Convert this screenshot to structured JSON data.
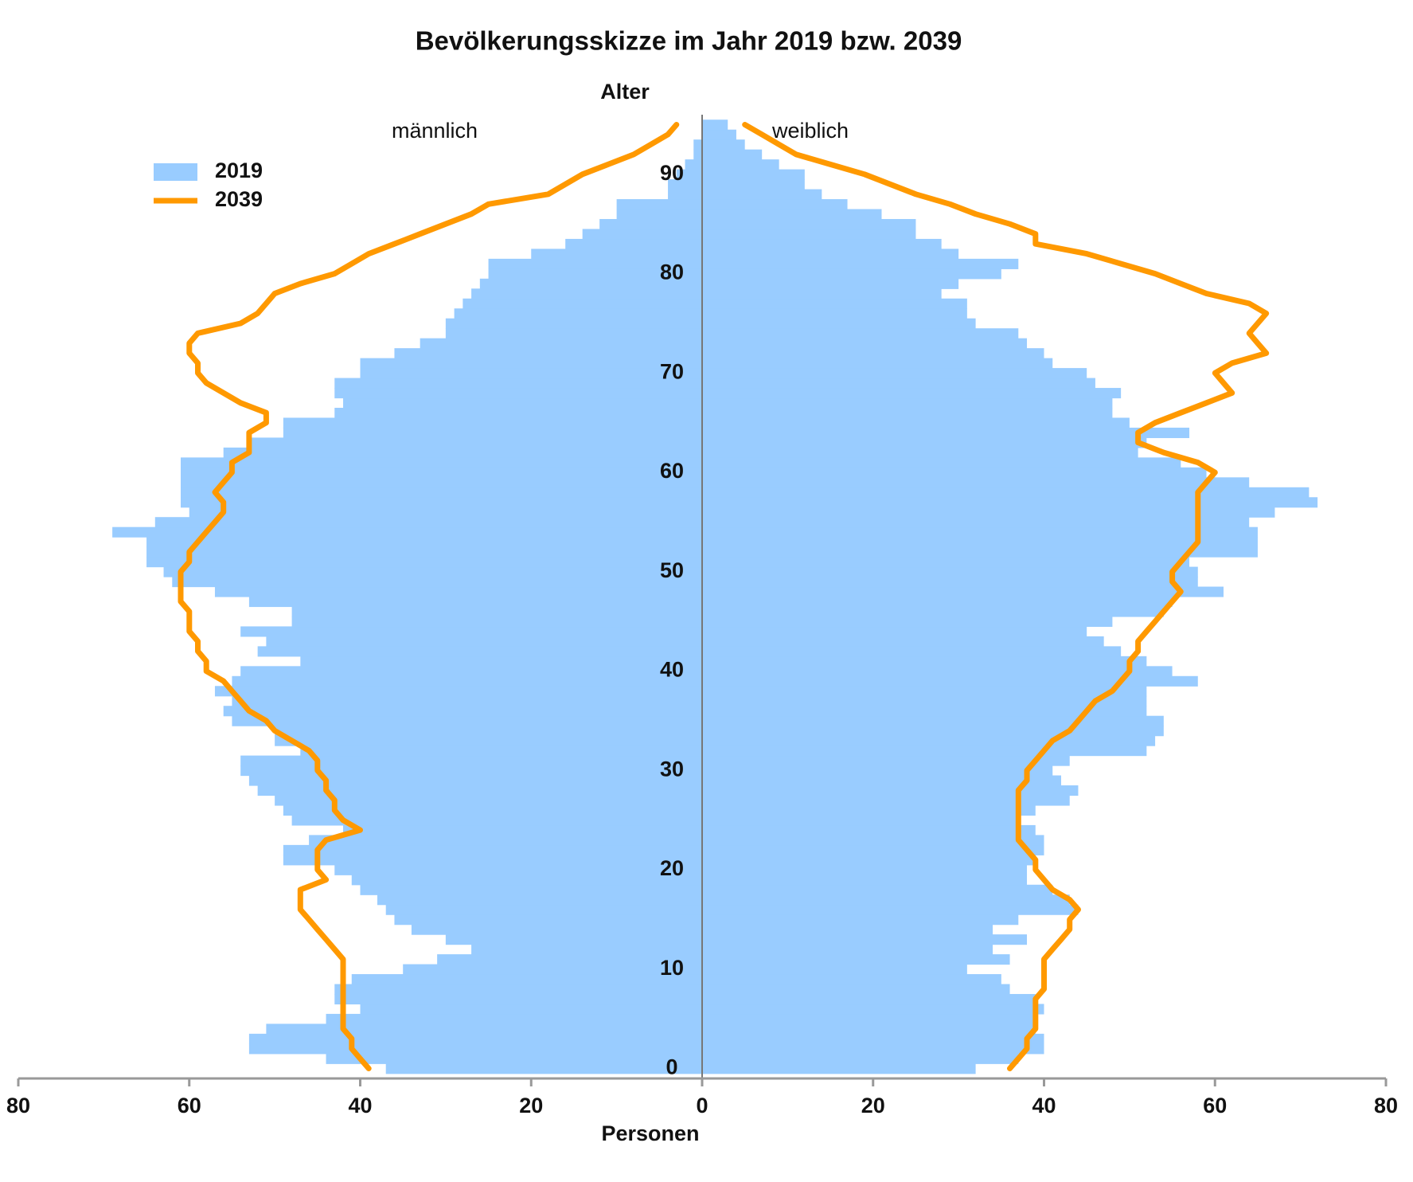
{
  "chart_data": {
    "type": "pyramid",
    "title": "Bevölkerungsskizze im Jahr 2019 bzw. 2039",
    "ylabel": "Alter",
    "xlabel": "Personen",
    "left_label": "männlich",
    "right_label": "weiblich",
    "ages": [
      0,
      1,
      2,
      3,
      4,
      5,
      6,
      7,
      8,
      9,
      10,
      11,
      12,
      13,
      14,
      15,
      16,
      17,
      18,
      19,
      20,
      21,
      22,
      23,
      24,
      25,
      26,
      27,
      28,
      29,
      30,
      31,
      32,
      33,
      34,
      35,
      36,
      37,
      38,
      39,
      40,
      41,
      42,
      43,
      44,
      45,
      46,
      47,
      48,
      49,
      50,
      51,
      52,
      53,
      54,
      55,
      56,
      57,
      58,
      59,
      60,
      61,
      62,
      63,
      64,
      65,
      66,
      67,
      68,
      69,
      70,
      71,
      72,
      73,
      74,
      75,
      76,
      77,
      78,
      79,
      80,
      81,
      82,
      83,
      84,
      85,
      86,
      87,
      88,
      89,
      90,
      91,
      92,
      93,
      94,
      95
    ],
    "series": [
      {
        "name": "2019",
        "color": "#99ccff",
        "type": "bar",
        "male": [
          37,
          44,
          53,
          53,
          51,
          44,
          40,
          43,
          43,
          41,
          35,
          31,
          27,
          30,
          34,
          36,
          37,
          38,
          40,
          41,
          43,
          49,
          49,
          46,
          42,
          48,
          49,
          50,
          52,
          53,
          54,
          54,
          47,
          50,
          50,
          55,
          56,
          55,
          57,
          55,
          54,
          47,
          52,
          51,
          54,
          48,
          48,
          53,
          57,
          62,
          63,
          65,
          65,
          65,
          69,
          64,
          60,
          61,
          61,
          61,
          61,
          61,
          56,
          53,
          49,
          49,
          43,
          42,
          43,
          43,
          40,
          40,
          36,
          33,
          30,
          30,
          29,
          28,
          27,
          26,
          25,
          25,
          20,
          16,
          14,
          12,
          10,
          10,
          4,
          4,
          3,
          2,
          1,
          1,
          0,
          0
        ],
        "female": [
          32,
          37,
          40,
          40,
          39,
          39,
          40,
          39,
          36,
          35,
          31,
          36,
          34,
          38,
          34,
          37,
          44,
          43,
          41,
          38,
          38,
          39,
          40,
          40,
          39,
          37,
          39,
          43,
          44,
          42,
          41,
          43,
          52,
          53,
          54,
          54,
          52,
          52,
          52,
          58,
          55,
          52,
          49,
          47,
          45,
          48,
          54,
          55,
          61,
          58,
          58,
          57,
          65,
          65,
          65,
          64,
          67,
          72,
          71,
          64,
          59,
          56,
          51,
          52,
          57,
          50,
          48,
          48,
          49,
          46,
          45,
          41,
          40,
          38,
          37,
          32,
          31,
          31,
          28,
          30,
          35,
          37,
          30,
          28,
          25,
          25,
          21,
          17,
          14,
          12,
          12,
          9,
          7,
          5,
          4,
          3
        ]
      },
      {
        "name": "2039",
        "color": "#ff9900",
        "type": "line",
        "male": [
          39,
          40,
          41,
          41,
          42,
          42,
          42,
          42,
          42,
          42,
          42,
          42,
          43,
          44,
          45,
          46,
          47,
          47,
          47,
          44,
          45,
          45,
          45,
          44,
          40,
          42,
          43,
          43,
          44,
          44,
          45,
          45,
          46,
          48,
          50,
          51,
          53,
          54,
          55,
          56,
          58,
          58,
          59,
          59,
          60,
          60,
          60,
          61,
          61,
          61,
          61,
          60,
          60,
          59,
          58,
          57,
          56,
          56,
          57,
          56,
          55,
          55,
          53,
          53,
          53,
          51,
          51,
          54,
          56,
          58,
          59,
          59,
          60,
          60,
          59,
          54,
          52,
          51,
          50,
          47,
          43,
          41,
          39,
          36,
          33,
          30,
          27,
          25,
          18,
          16,
          14,
          11,
          8,
          6,
          4,
          3
        ],
        "female": [
          36,
          37,
          38,
          38,
          39,
          39,
          39,
          39,
          40,
          40,
          40,
          40,
          41,
          42,
          43,
          43,
          44,
          43,
          41,
          40,
          39,
          39,
          38,
          37,
          37,
          37,
          37,
          37,
          37,
          38,
          38,
          39,
          40,
          41,
          43,
          44,
          45,
          46,
          48,
          49,
          50,
          50,
          51,
          51,
          52,
          53,
          54,
          55,
          56,
          55,
          55,
          56,
          57,
          58,
          58,
          58,
          58,
          58,
          58,
          59,
          60,
          58,
          54,
          51,
          51,
          53,
          56,
          59,
          62,
          61,
          60,
          62,
          66,
          65,
          64,
          65,
          66,
          64,
          59,
          56,
          53,
          49,
          45,
          39,
          39,
          36,
          32,
          29,
          25,
          22,
          19,
          15,
          11,
          9,
          7,
          5
        ]
      }
    ],
    "xlim": [
      -80,
      80
    ],
    "xticks": [
      {
        "value": -80,
        "label": "80"
      },
      {
        "value": -60,
        "label": "60"
      },
      {
        "value": -40,
        "label": "40"
      },
      {
        "value": -20,
        "label": "20"
      },
      0,
      20,
      40,
      60,
      80
    ],
    "ylim": [
      -1,
      96
    ],
    "yticks": [
      0,
      10,
      20,
      30,
      40,
      50,
      60,
      70,
      80,
      90
    ]
  }
}
